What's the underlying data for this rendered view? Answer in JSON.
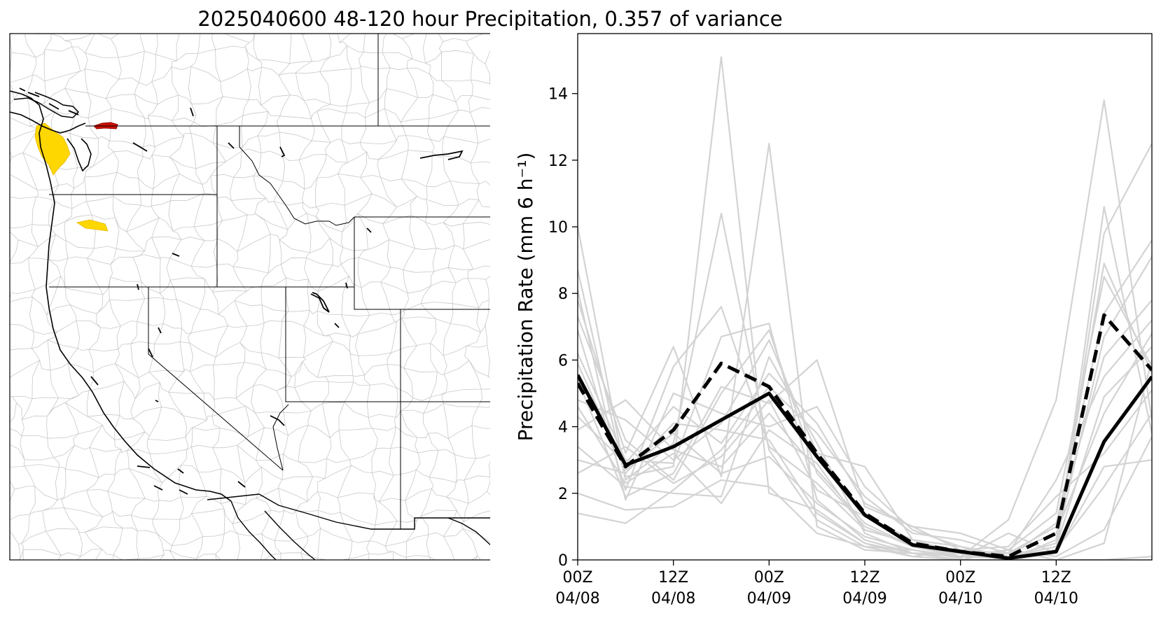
{
  "figure": {
    "title": "2025040600 48-120 hour Precipitation, 0.357 of variance"
  },
  "map": {
    "highlight_colors": {
      "gold": "#FFD700",
      "red": "#CC1100"
    },
    "basin_line_color": "#C8C8C8"
  },
  "chart_data": {
    "type": "line",
    "ylabel": "Precipitation Rate (mm 6 h⁻¹)",
    "xlabel": "",
    "ylim": [
      0,
      15.8
    ],
    "xlim": [
      0,
      72
    ],
    "x": [
      0,
      6,
      12,
      18,
      24,
      30,
      36,
      42,
      48,
      54,
      60,
      66,
      72
    ],
    "xticks": [
      {
        "x": 0,
        "line1": "00Z",
        "line2": "04/08"
      },
      {
        "x": 12,
        "line1": "12Z",
        "line2": "04/08"
      },
      {
        "x": 24,
        "line1": "00Z",
        "line2": "04/09"
      },
      {
        "x": 36,
        "line1": "12Z",
        "line2": "04/09"
      },
      {
        "x": 48,
        "line1": "00Z",
        "line2": "04/10"
      },
      {
        "x": 60,
        "line1": "12Z",
        "line2": "04/10"
      }
    ],
    "yticks": [
      0,
      2,
      4,
      6,
      8,
      10,
      12,
      14
    ],
    "grid": false,
    "ensemble_color": "#D3D3D3",
    "ensemble_members": [
      [
        10.0,
        2.5,
        2.8,
        15.1,
        2.0,
        1.5,
        0.5,
        0.2,
        0.1,
        0.3,
        0.0,
        0.0,
        0.1
      ],
      [
        8.7,
        2.4,
        3.5,
        10.4,
        3.3,
        1.2,
        0.4,
        0.3,
        0.05,
        0.8,
        0.2,
        10.6,
        3.8
      ],
      [
        7.8,
        3.2,
        6.4,
        2.5,
        12.5,
        1.0,
        0.3,
        0.2,
        0.0,
        0.0,
        0.0,
        0.0,
        0.1
      ],
      [
        6.9,
        2.1,
        5.8,
        7.6,
        3.4,
        2.3,
        0.9,
        0.5,
        0.1,
        1.2,
        4.8,
        13.8,
        4.2
      ],
      [
        6.2,
        3.0,
        2.9,
        6.7,
        7.1,
        1.8,
        0.6,
        0.2,
        0.2,
        0.0,
        0.2,
        9.8,
        12.5
      ],
      [
        5.4,
        1.9,
        2.6,
        5.2,
        4.7,
        6.0,
        1.6,
        1.0,
        0.8,
        0.3,
        1.4,
        8.5,
        5.8
      ],
      [
        4.8,
        4.2,
        3.0,
        4.1,
        6.6,
        3.2,
        2.8,
        0.6,
        0.4,
        0.1,
        0.5,
        6.7,
        9.1
      ],
      [
        4.3,
        2.9,
        4.6,
        3.5,
        5.6,
        4.1,
        1.7,
        1.0,
        0.3,
        0.2,
        2.4,
        5.5,
        7.2
      ],
      [
        3.9,
        4.8,
        3.3,
        2.8,
        4.4,
        2.7,
        1.1,
        0.4,
        0.1,
        0.2,
        0.8,
        4.4,
        6.8
      ],
      [
        3.4,
        2.2,
        2.0,
        1.9,
        6.1,
        3.5,
        0.8,
        0.2,
        0.0,
        0.3,
        0.1,
        0.9,
        3.7
      ],
      [
        3.0,
        2.6,
        4.1,
        3.9,
        3.6,
        1.4,
        0.5,
        0.1,
        0.3,
        0.4,
        1.9,
        3.2,
        5.1
      ],
      [
        2.6,
        3.4,
        2.3,
        3.1,
        4.8,
        2.1,
        1.3,
        0.6,
        0.2,
        0.1,
        0.3,
        2.2,
        4.4
      ],
      [
        2.0,
        1.5,
        1.6,
        2.4,
        2.2,
        0.8,
        0.4,
        0.1,
        0.0,
        0.0,
        0.0,
        0.5,
        6.0
      ],
      [
        1.4,
        1.1,
        2.1,
        3.3,
        5.2,
        3.8,
        1.9,
        0.8,
        0.6,
        0.2,
        1.0,
        6.1,
        7.8
      ],
      [
        5.9,
        2.7,
        3.8,
        2.6,
        3.1,
        1.7,
        0.7,
        0.3,
        0.1,
        0.05,
        0.2,
        2.8,
        3.0
      ],
      [
        7.3,
        3.6,
        2.4,
        5.0,
        6.9,
        2.6,
        1.0,
        0.4,
        0.2,
        0.0,
        0.6,
        8.9,
        5.6
      ],
      [
        8.1,
        1.8,
        5.0,
        4.4,
        4.0,
        4.6,
        2.2,
        0.9,
        0.4,
        0.1,
        1.1,
        7.4,
        9.6
      ],
      [
        4.6,
        2.3,
        3.2,
        1.7,
        3.9,
        2.9,
        0.9,
        0.5,
        0.3,
        0.1,
        0.4,
        4.9,
        6.4
      ]
    ],
    "series": [
      {
        "style": "solid",
        "color": "#000000",
        "values": [
          5.55,
          2.85,
          3.4,
          4.2,
          5.0,
          3.1,
          1.35,
          0.45,
          0.25,
          0.05,
          0.25,
          3.55,
          5.5
        ]
      },
      {
        "style": "dashed",
        "color": "#000000",
        "values": [
          5.3,
          2.8,
          3.9,
          5.9,
          5.2,
          3.2,
          1.4,
          0.5,
          0.25,
          0.1,
          0.8,
          7.35,
          5.7
        ]
      }
    ]
  }
}
